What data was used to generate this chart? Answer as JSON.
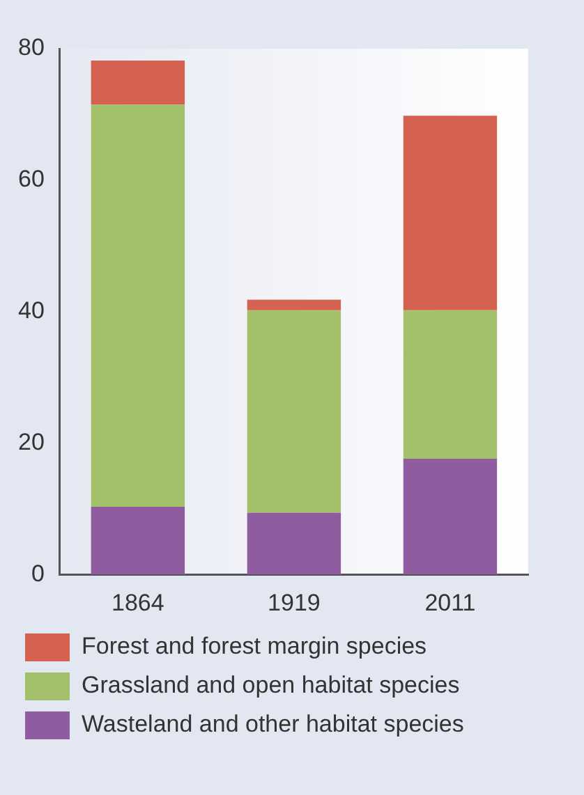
{
  "chart_data": {
    "type": "bar",
    "stacked": true,
    "categories": [
      "1864",
      "1919",
      "2011"
    ],
    "series": [
      {
        "name": "Wasteland and other habitat species",
        "color": "#905ca0",
        "values": [
          10.3,
          9.4,
          17.6
        ]
      },
      {
        "name": "Grassland and open habitat species",
        "color": "#a3c16a",
        "values": [
          61.2,
          30.8,
          22.6
        ]
      },
      {
        "name": "Forest and forest margin species",
        "color": "#d56150",
        "values": [
          6.7,
          1.6,
          29.6
        ]
      }
    ],
    "ylim": [
      0,
      80
    ],
    "yticks": [
      0,
      20,
      40,
      60,
      80
    ],
    "grid": false,
    "legend": "bottom"
  }
}
